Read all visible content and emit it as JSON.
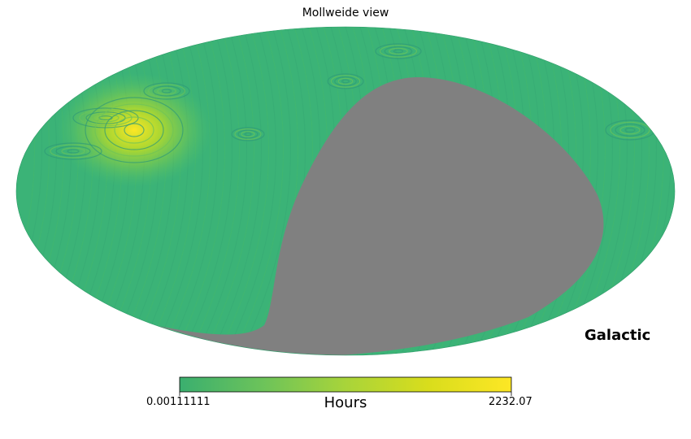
{
  "chart_data": {
    "type": "heatmap",
    "projection": "Mollweide",
    "title": "Mollweide view",
    "coord_label": "Galactic",
    "colorbar": {
      "label": "Hours",
      "min_label": "0.00111111",
      "max_label": "2232.07",
      "min": 0.00111111,
      "max": 2232.07,
      "colormap": "viridis",
      "colors": [
        "#3aaf6f",
        "#6cc35a",
        "#a8d43a",
        "#d9dd1c",
        "#fde725"
      ]
    },
    "background_color": "#3bb377",
    "masked_color": "#808080",
    "hotspot_color": "#fde725",
    "grid": false
  }
}
